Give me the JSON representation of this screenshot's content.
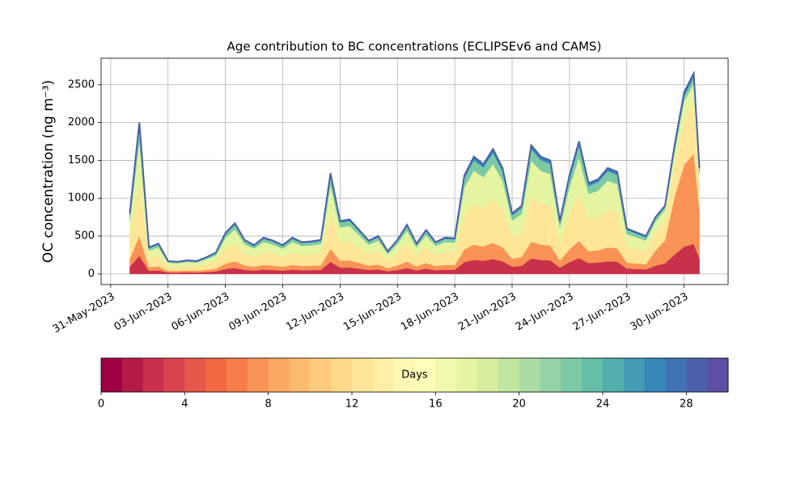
{
  "chart_data": {
    "type": "stackedarea",
    "title": "Age contribution to BC concentrations (ECLIPSEv6 and CAMS)",
    "ylabel": "OC concentration (ng m⁻³)",
    "xlim": [
      -0.5,
      32.3
    ],
    "ylim": [
      -140,
      2850
    ],
    "xticks": [
      {
        "value": 0,
        "label": "31-May-2023"
      },
      {
        "value": 3,
        "label": "03-Jun-2023"
      },
      {
        "value": 6,
        "label": "06-Jun-2023"
      },
      {
        "value": 9,
        "label": "09-Jun-2023"
      },
      {
        "value": 12,
        "label": "12-Jun-2023"
      },
      {
        "value": 15,
        "label": "15-Jun-2023"
      },
      {
        "value": 18,
        "label": "18-Jun-2023"
      },
      {
        "value": 21,
        "label": "21-Jun-2023"
      },
      {
        "value": 24,
        "label": "24-Jun-2023"
      },
      {
        "value": 27,
        "label": "27-Jun-2023"
      },
      {
        "value": 30,
        "label": "30-Jun-2023"
      }
    ],
    "yticks": [
      0,
      500,
      1000,
      1500,
      2000,
      2500
    ],
    "grid": true,
    "outline_color": "#4a5fa8",
    "x": [
      1.0,
      1.5,
      2.0,
      2.5,
      3.0,
      3.5,
      4.0,
      4.5,
      5.0,
      5.5,
      6.0,
      6.5,
      7.0,
      7.5,
      8.0,
      8.5,
      9.0,
      9.5,
      10.0,
      10.5,
      11.0,
      11.5,
      12.0,
      12.5,
      13.0,
      13.5,
      14.0,
      14.5,
      15.0,
      15.5,
      16.0,
      16.5,
      17.0,
      17.5,
      18.0,
      18.5,
      19.0,
      19.5,
      20.0,
      20.5,
      21.0,
      21.5,
      22.0,
      22.5,
      23.0,
      23.5,
      24.0,
      24.5,
      25.0,
      25.5,
      26.0,
      26.5,
      27.0,
      27.5,
      28.0,
      28.5,
      29.0,
      29.5,
      30.0,
      30.5,
      30.8
    ],
    "series": [
      {
        "color": "#c9314b",
        "values": [
          96,
          240,
          42,
          48,
          20,
          19,
          22,
          20,
          26,
          34,
          65,
          80,
          54,
          46,
          58,
          53,
          46,
          58,
          50,
          52,
          54,
          160,
          84,
          86,
          70,
          53,
          60,
          36,
          54,
          78,
          48,
          70,
          50,
          58,
          56,
          156,
          186,
          174,
          198,
          168,
          96,
          108,
          204,
          186,
          180,
          84,
          156,
          210,
          144,
          150,
          168,
          162,
          72,
          66,
          60,
          110,
          140,
          255,
          360,
          398,
          210
        ]
      },
      {
        "color": "#f99355",
        "values": [
          104,
          260,
          46,
          52,
          22,
          21,
          23,
          22,
          29,
          36,
          70,
          87,
          59,
          49,
          62,
          57,
          49,
          62,
          55,
          56,
          59,
          173,
          91,
          94,
          75,
          57,
          65,
          39,
          59,
          85,
          52,
          75,
          55,
          62,
          61,
          169,
          202,
          189,
          215,
          182,
          104,
          117,
          221,
          202,
          195,
          91,
          169,
          228,
          156,
          163,
          182,
          176,
          78,
          72,
          65,
          200,
          300,
          765,
          1080,
          1192,
          630
        ]
      },
      {
        "color": "#fee597",
        "values": [
          280,
          700,
          122,
          140,
          60,
          56,
          63,
          60,
          77,
          98,
          189,
          235,
          157,
          133,
          168,
          154,
          133,
          168,
          147,
          150,
          157,
          465,
          245,
          252,
          203,
          154,
          175,
          105,
          157,
          227,
          140,
          203,
          147,
          168,
          165,
          455,
          542,
          507,
          577,
          490,
          280,
          315,
          595,
          542,
          525,
          245,
          455,
          612,
          420,
          437,
          490,
          472,
          210,
          192,
          175,
          230,
          260,
          425,
          600,
          662,
          350
        ]
      },
      {
        "color": "#e5f4a0",
        "values": [
          224,
          560,
          98,
          112,
          48,
          45,
          50,
          48,
          62,
          78,
          151,
          188,
          126,
          106,
          134,
          123,
          106,
          134,
          118,
          120,
          126,
          372,
          196,
          202,
          162,
          123,
          140,
          84,
          126,
          182,
          112,
          162,
          118,
          134,
          132,
          364,
          434,
          406,
          462,
          392,
          224,
          252,
          476,
          434,
          420,
          196,
          364,
          490,
          336,
          350,
          392,
          378,
          168,
          154,
          140,
          150,
          150,
          170,
          240,
          265,
          140
        ]
      },
      {
        "color": "#7ccaa5",
        "values": [
          72,
          180,
          32,
          36,
          15,
          14,
          16,
          15,
          20,
          25,
          49,
          60,
          41,
          34,
          43,
          40,
          34,
          43,
          38,
          39,
          41,
          120,
          63,
          65,
          52,
          40,
          45,
          27,
          41,
          59,
          36,
          52,
          38,
          43,
          42,
          117,
          140,
          131,
          149,
          126,
          72,
          81,
          153,
          140,
          135,
          63,
          117,
          158,
          108,
          113,
          126,
          122,
          54,
          50,
          45,
          45,
          40,
          51,
          72,
          80,
          42
        ]
      },
      {
        "color": "#3787bb",
        "values": [
          24,
          60,
          10,
          12,
          5,
          5,
          6,
          5,
          6,
          9,
          16,
          20,
          13,
          12,
          15,
          13,
          12,
          15,
          12,
          13,
          13,
          40,
          21,
          21,
          18,
          13,
          15,
          9,
          13,
          19,
          12,
          18,
          12,
          15,
          14,
          39,
          46,
          43,
          49,
          42,
          24,
          27,
          51,
          46,
          45,
          21,
          39,
          52,
          36,
          37,
          42,
          40,
          18,
          16,
          15,
          15,
          10,
          34,
          48,
          53,
          28
        ]
      }
    ],
    "colorbar": {
      "label": "Days",
      "lim": [
        0,
        30
      ],
      "ticks": [
        0,
        4,
        8,
        12,
        16,
        20,
        24,
        28
      ],
      "colors": [
        "#9e0142",
        "#b41b47",
        "#c9314b",
        "#d8434e",
        "#e55748",
        "#f06943",
        "#f67c4a",
        "#f99355",
        "#fca862",
        "#fdbb6d",
        "#fdcb7b",
        "#fed98a",
        "#fee597",
        "#feefa5",
        "#fff8b3",
        "#fbfdb9",
        "#f1f9ae",
        "#e5f4a0",
        "#d3ed9c",
        "#c0e69f",
        "#aadca4",
        "#94d3a4",
        "#7ccaa5",
        "#65bea7",
        "#54aead",
        "#439bb5",
        "#3787bb",
        "#3f73b4",
        "#4e60ab",
        "#5e4fa2"
      ]
    }
  }
}
